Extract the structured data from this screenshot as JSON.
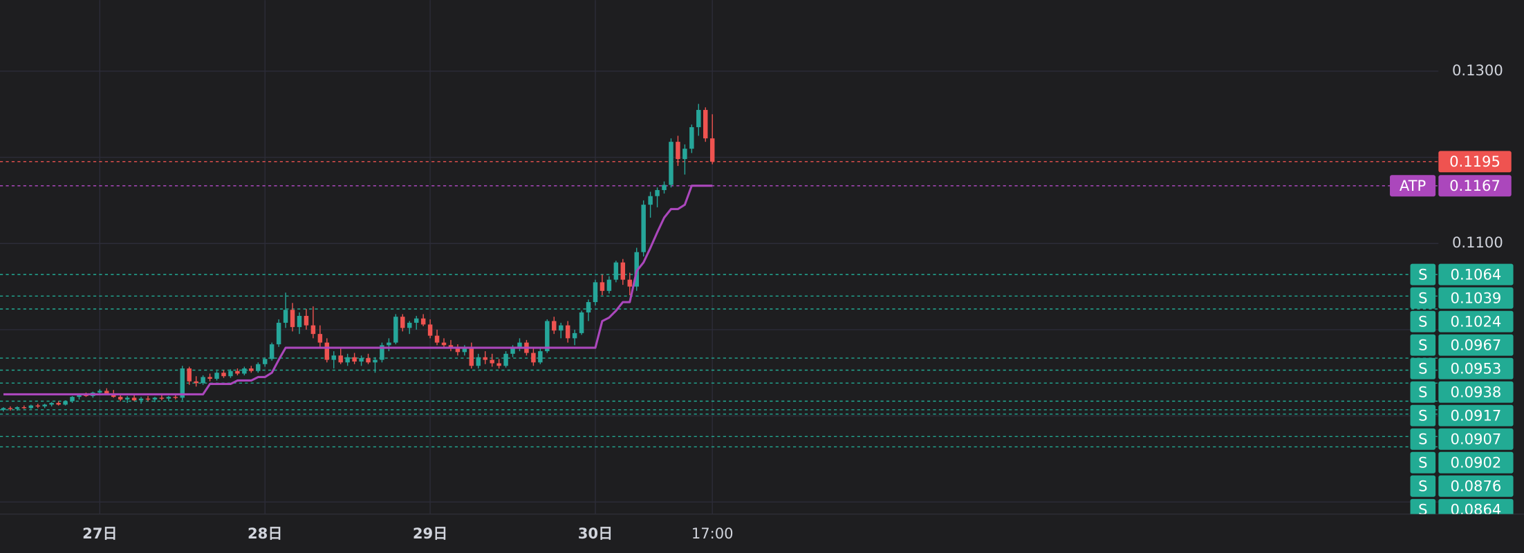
{
  "chart_data": {
    "type": "candlestick",
    "up_color": "#26a69a",
    "down_color": "#ef5350",
    "candles": [
      [
        0.0907,
        0.091,
        0.0905,
        0.0909
      ],
      [
        0.0909,
        0.0911,
        0.0906,
        0.0908
      ],
      [
        0.0908,
        0.0911,
        0.0906,
        0.091
      ],
      [
        0.091,
        0.0912,
        0.0908,
        0.0909
      ],
      [
        0.0909,
        0.0913,
        0.0908,
        0.0912
      ],
      [
        0.0912,
        0.0914,
        0.0909,
        0.0911
      ],
      [
        0.0911,
        0.0914,
        0.0909,
        0.0913
      ],
      [
        0.0913,
        0.0916,
        0.0911,
        0.0915
      ],
      [
        0.0915,
        0.0917,
        0.0912,
        0.0913
      ],
      [
        0.0913,
        0.0918,
        0.0912,
        0.0917
      ],
      [
        0.0917,
        0.0923,
        0.0915,
        0.0922
      ],
      [
        0.0922,
        0.0926,
        0.0919,
        0.0925
      ],
      [
        0.0925,
        0.0927,
        0.0922,
        0.0923
      ],
      [
        0.0923,
        0.0928,
        0.0921,
        0.0927
      ],
      [
        0.0927,
        0.0931,
        0.0924,
        0.0929
      ],
      [
        0.0929,
        0.0932,
        0.0925,
        0.0926
      ],
      [
        0.0926,
        0.093,
        0.0921,
        0.0922
      ],
      [
        0.0922,
        0.0925,
        0.0917,
        0.0919
      ],
      [
        0.0919,
        0.0923,
        0.0915,
        0.0921
      ],
      [
        0.0921,
        0.0924,
        0.0917,
        0.0918
      ],
      [
        0.0918,
        0.0922,
        0.0914,
        0.092
      ],
      [
        0.092,
        0.0923,
        0.0917,
        0.0919
      ],
      [
        0.0919,
        0.0922,
        0.0916,
        0.0921
      ],
      [
        0.0921,
        0.0924,
        0.0918,
        0.092
      ],
      [
        0.092,
        0.0923,
        0.0917,
        0.0922
      ],
      [
        0.0922,
        0.0925,
        0.0919,
        0.0921
      ],
      [
        0.0921,
        0.0958,
        0.0918,
        0.0955
      ],
      [
        0.0955,
        0.0957,
        0.0936,
        0.094
      ],
      [
        0.094,
        0.0946,
        0.0934,
        0.0938
      ],
      [
        0.0938,
        0.0947,
        0.0936,
        0.0945
      ],
      [
        0.0945,
        0.0949,
        0.094,
        0.0943
      ],
      [
        0.0943,
        0.0952,
        0.0941,
        0.095
      ],
      [
        0.095,
        0.0953,
        0.0944,
        0.0946
      ],
      [
        0.0946,
        0.0954,
        0.0944,
        0.0952
      ],
      [
        0.0952,
        0.0955,
        0.0947,
        0.0949
      ],
      [
        0.0949,
        0.0957,
        0.0947,
        0.0955
      ],
      [
        0.0955,
        0.0958,
        0.095,
        0.0952
      ],
      [
        0.0952,
        0.0962,
        0.095,
        0.096
      ],
      [
        0.096,
        0.0968,
        0.0957,
        0.0966
      ],
      [
        0.0966,
        0.0985,
        0.0964,
        0.0983
      ],
      [
        0.0983,
        0.1012,
        0.098,
        0.1008
      ],
      [
        0.1008,
        0.1043,
        0.1002,
        0.1023
      ],
      [
        0.1023,
        0.1031,
        0.0998,
        0.1003
      ],
      [
        0.1003,
        0.102,
        0.0995,
        0.1016
      ],
      [
        0.1016,
        0.1024,
        0.1,
        0.1005
      ],
      [
        0.1005,
        0.1027,
        0.099,
        0.0995
      ],
      [
        0.0995,
        0.1005,
        0.098,
        0.0985
      ],
      [
        0.0985,
        0.099,
        0.0962,
        0.0965
      ],
      [
        0.0965,
        0.0975,
        0.0955,
        0.097
      ],
      [
        0.097,
        0.0978,
        0.096,
        0.0962
      ],
      [
        0.0962,
        0.0972,
        0.0958,
        0.0968
      ],
      [
        0.0968,
        0.0973,
        0.096,
        0.0963
      ],
      [
        0.0963,
        0.097,
        0.0958,
        0.0967
      ],
      [
        0.0967,
        0.0972,
        0.096,
        0.0962
      ],
      [
        0.0962,
        0.0968,
        0.095,
        0.0965
      ],
      [
        0.0965,
        0.0985,
        0.0962,
        0.0982
      ],
      [
        0.0982,
        0.099,
        0.0975,
        0.0985
      ],
      [
        0.0985,
        0.1018,
        0.0983,
        0.1015
      ],
      [
        0.1015,
        0.1018,
        0.0998,
        0.1002
      ],
      [
        0.1002,
        0.101,
        0.0995,
        0.1008
      ],
      [
        0.1008,
        0.1016,
        0.1,
        0.1013
      ],
      [
        0.1013,
        0.1018,
        0.1004,
        0.1006
      ],
      [
        0.1006,
        0.1012,
        0.099,
        0.0993
      ],
      [
        0.0993,
        0.1,
        0.0982,
        0.0985
      ],
      [
        0.0985,
        0.099,
        0.0978,
        0.0982
      ],
      [
        0.0982,
        0.0988,
        0.0975,
        0.098
      ],
      [
        0.098,
        0.0983,
        0.097,
        0.0974
      ],
      [
        0.0974,
        0.0982,
        0.097,
        0.0978
      ],
      [
        0.0978,
        0.0985,
        0.0955,
        0.0958
      ],
      [
        0.0958,
        0.0972,
        0.0955,
        0.0968
      ],
      [
        0.0968,
        0.0975,
        0.096,
        0.0965
      ],
      [
        0.0965,
        0.0972,
        0.0957,
        0.0961
      ],
      [
        0.0961,
        0.0966,
        0.0955,
        0.0958
      ],
      [
        0.0958,
        0.0975,
        0.0956,
        0.0972
      ],
      [
        0.0972,
        0.0982,
        0.0968,
        0.0979
      ],
      [
        0.0979,
        0.099,
        0.0975,
        0.0985
      ],
      [
        0.0985,
        0.0988,
        0.097,
        0.0973
      ],
      [
        0.0973,
        0.0978,
        0.0958,
        0.0962
      ],
      [
        0.0962,
        0.0978,
        0.096,
        0.0975
      ],
      [
        0.0975,
        0.1012,
        0.0973,
        0.101
      ],
      [
        0.101,
        0.1015,
        0.0995,
        0.0999
      ],
      [
        0.0999,
        0.1008,
        0.099,
        0.1005
      ],
      [
        0.1005,
        0.101,
        0.0985,
        0.099
      ],
      [
        0.099,
        0.1,
        0.0982,
        0.0996
      ],
      [
        0.0996,
        0.1022,
        0.0994,
        0.102
      ],
      [
        0.102,
        0.1035,
        0.101,
        0.1032
      ],
      [
        0.1032,
        0.1058,
        0.1028,
        0.1055
      ],
      [
        0.1055,
        0.1064,
        0.104,
        0.1045
      ],
      [
        0.1045,
        0.1062,
        0.1042,
        0.1058
      ],
      [
        0.1058,
        0.108,
        0.1055,
        0.1078
      ],
      [
        0.1078,
        0.1082,
        0.1052,
        0.1058
      ],
      [
        0.1058,
        0.1066,
        0.104,
        0.105
      ],
      [
        0.105,
        0.1095,
        0.1045,
        0.109
      ],
      [
        0.109,
        0.115,
        0.1085,
        0.1145
      ],
      [
        0.1145,
        0.116,
        0.113,
        0.1155
      ],
      [
        0.1155,
        0.1165,
        0.1142,
        0.1162
      ],
      [
        0.1162,
        0.1172,
        0.1158,
        0.1168
      ],
      [
        0.1168,
        0.1222,
        0.1165,
        0.1218
      ],
      [
        0.1218,
        0.1225,
        0.119,
        0.1198
      ],
      [
        0.1198,
        0.1215,
        0.118,
        0.121
      ],
      [
        0.121,
        0.1238,
        0.1205,
        0.1235
      ],
      [
        0.1235,
        0.1262,
        0.1225,
        0.1255
      ],
      [
        0.1255,
        0.1258,
        0.1218,
        0.1222
      ],
      [
        0.1222,
        0.125,
        0.1192,
        0.1195
      ]
    ],
    "series": [
      {
        "name": "ATP",
        "color": "#ab47bc",
        "values": [
          0.0925,
          0.0925,
          0.0925,
          0.0925,
          0.0925,
          0.0925,
          0.0925,
          0.0925,
          0.0925,
          0.0925,
          0.0925,
          0.0925,
          0.0925,
          0.0925,
          0.0925,
          0.0925,
          0.0925,
          0.0925,
          0.0925,
          0.0925,
          0.0925,
          0.0925,
          0.0925,
          0.0925,
          0.0925,
          0.0925,
          0.0925,
          0.0925,
          0.0925,
          0.0925,
          0.0937,
          0.0937,
          0.0937,
          0.0937,
          0.0941,
          0.0941,
          0.0941,
          0.0945,
          0.0945,
          0.095,
          0.0965,
          0.0979,
          0.0979,
          0.0979,
          0.0979,
          0.0979,
          0.0979,
          0.0979,
          0.0979,
          0.0979,
          0.0979,
          0.0979,
          0.0979,
          0.0979,
          0.0979,
          0.0979,
          0.0979,
          0.0979,
          0.0979,
          0.0979,
          0.0979,
          0.0979,
          0.0979,
          0.0979,
          0.0979,
          0.0979,
          0.0979,
          0.0979,
          0.0979,
          0.0979,
          0.0979,
          0.0979,
          0.0979,
          0.0979,
          0.0979,
          0.0979,
          0.0979,
          0.0979,
          0.0979,
          0.0979,
          0.0979,
          0.0979,
          0.0979,
          0.0979,
          0.0979,
          0.0979,
          0.0979,
          0.101,
          0.1014,
          0.1022,
          0.1032,
          0.1032,
          0.1068,
          0.1078,
          0.1095,
          0.1113,
          0.113,
          0.114,
          0.114,
          0.1145,
          0.1167,
          0.1167,
          0.1167,
          0.1167
        ],
        "last": {
          "value": 0.1167,
          "label": "0.1167"
        }
      }
    ],
    "last_price": {
      "value": 0.1195,
      "label": "0.1195"
    },
    "support_levels": {
      "tag": "S",
      "color": "#22ab94",
      "levels": [
        {
          "value": 0.1064,
          "label": "0.1064"
        },
        {
          "value": 0.1039,
          "label": "0.1039"
        },
        {
          "value": 0.1024,
          "label": "0.1024"
        },
        {
          "value": 0.0967,
          "label": "0.0967"
        },
        {
          "value": 0.0953,
          "label": "0.0953"
        },
        {
          "value": 0.0938,
          "label": "0.0938"
        },
        {
          "value": 0.0917,
          "label": "0.0917"
        },
        {
          "value": 0.0907,
          "label": "0.0907"
        },
        {
          "value": 0.0902,
          "label": "0.0902"
        },
        {
          "value": 0.0876,
          "label": "0.0876"
        },
        {
          "value": 0.0864,
          "label": "0.0864"
        }
      ]
    },
    "xlim": [
      -0.5,
      208.5
    ],
    "xticks": [
      {
        "value": 14,
        "label": "27日"
      },
      {
        "value": 38,
        "label": "28日"
      },
      {
        "value": 62,
        "label": "29日"
      },
      {
        "value": 86,
        "label": "30日"
      },
      {
        "value": 103,
        "label": "17:00"
      }
    ],
    "ylim": [
      0.0786,
      0.13825
    ],
    "yticks": [
      {
        "value": 0.13,
        "label": "0.1300"
      },
      {
        "value": 0.11,
        "label": "0.1100"
      }
    ],
    "ygrid": [
      0.12,
      0.1,
      0.09,
      0.08
    ],
    "grid": true
  }
}
